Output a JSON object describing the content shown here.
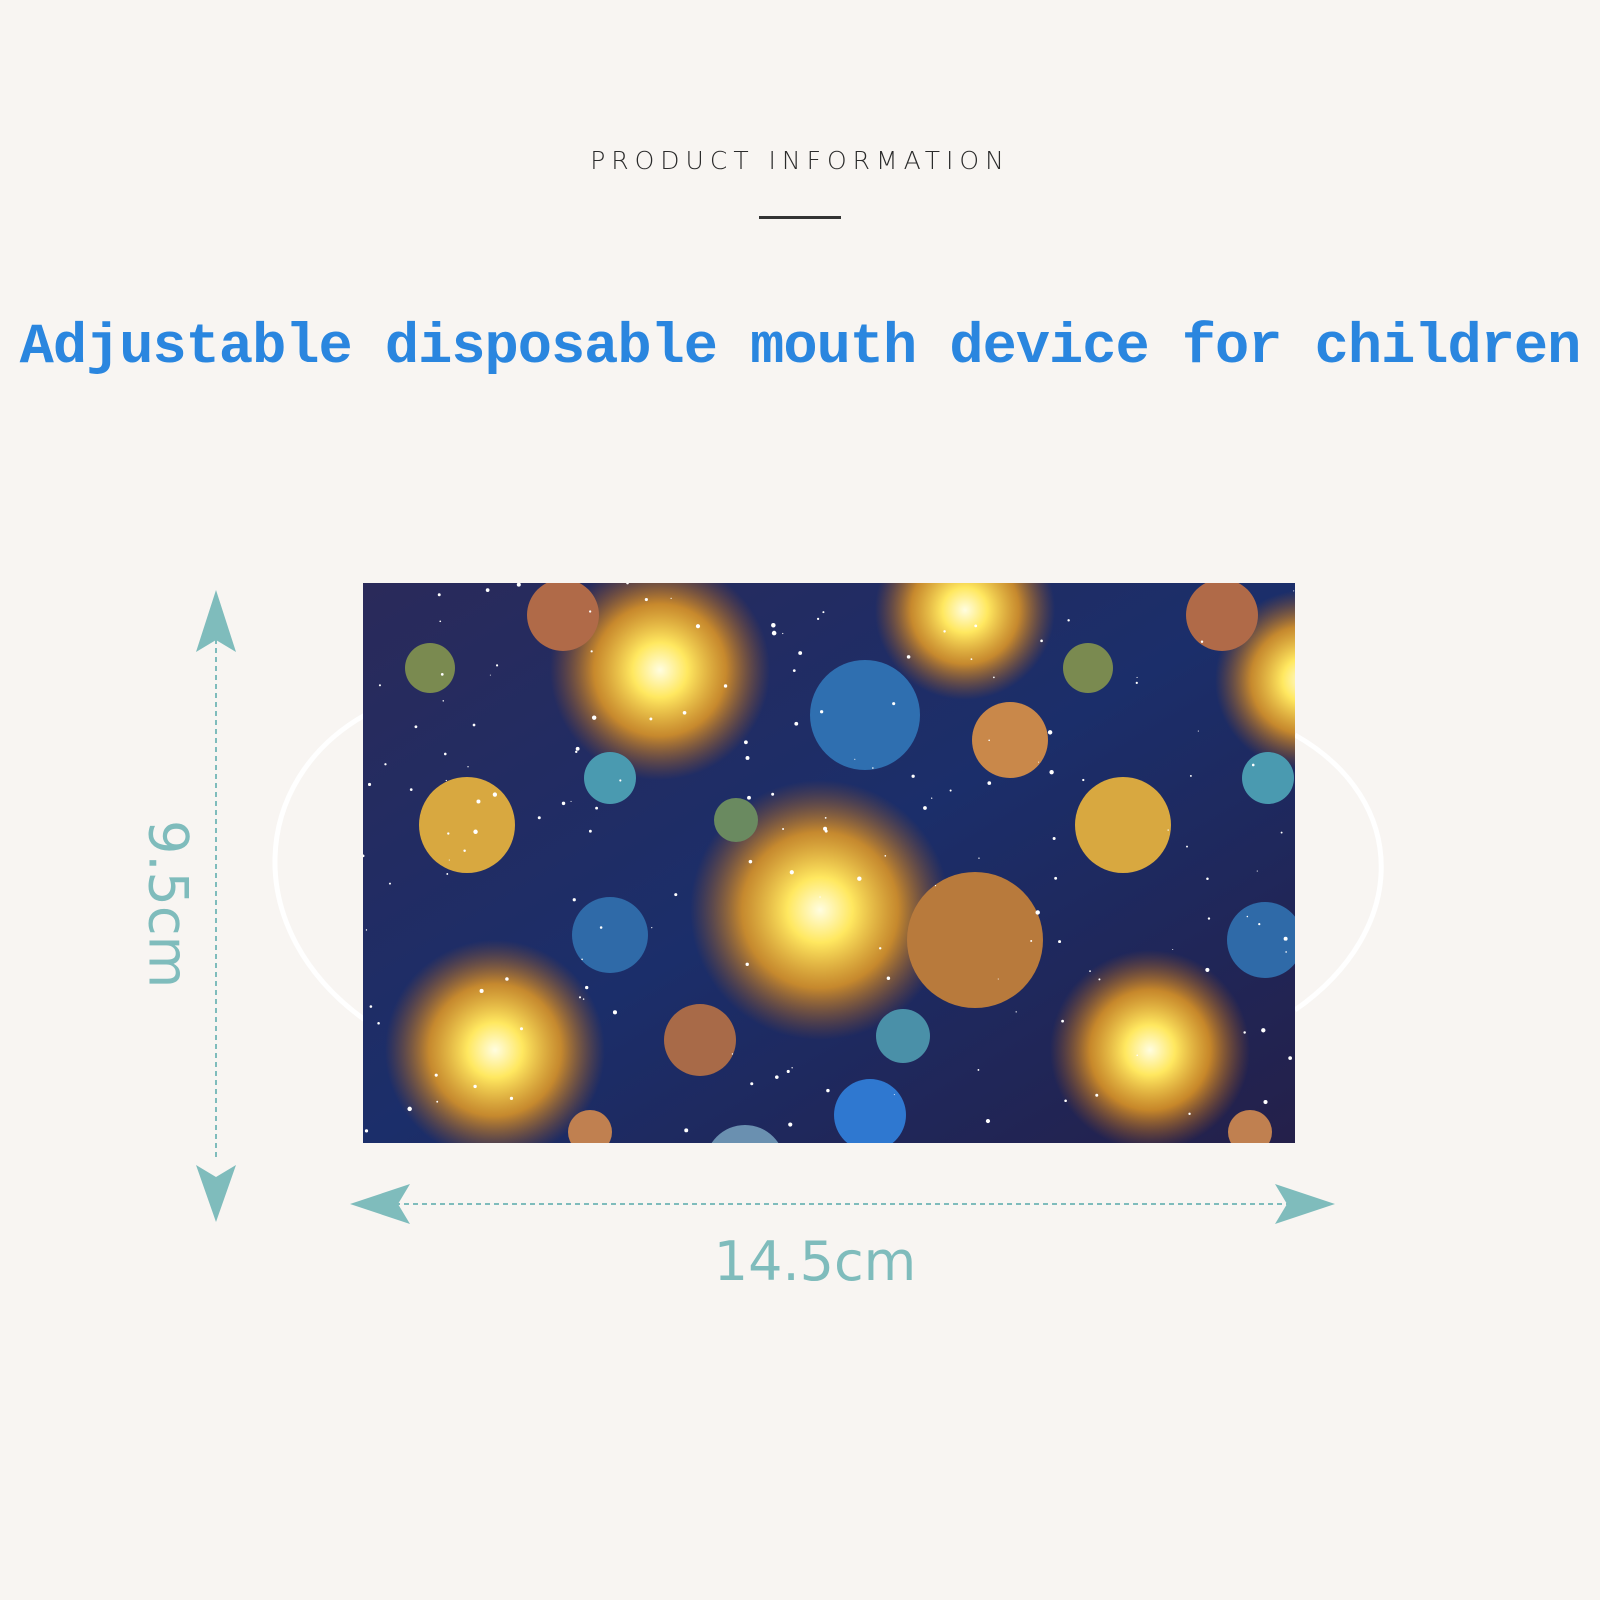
{
  "header": {
    "section_label": "PRODUCT INFORMATION",
    "headline": "Adjustable disposable mouth device for children"
  },
  "product": {
    "image": "space-planets-pattern-face-mask",
    "width_label": "14.5cm",
    "height_label": "9.5cm"
  },
  "colors": {
    "background": "#f8f5f2",
    "headline": "#2a86df",
    "dimension": "#7fbcbc"
  }
}
